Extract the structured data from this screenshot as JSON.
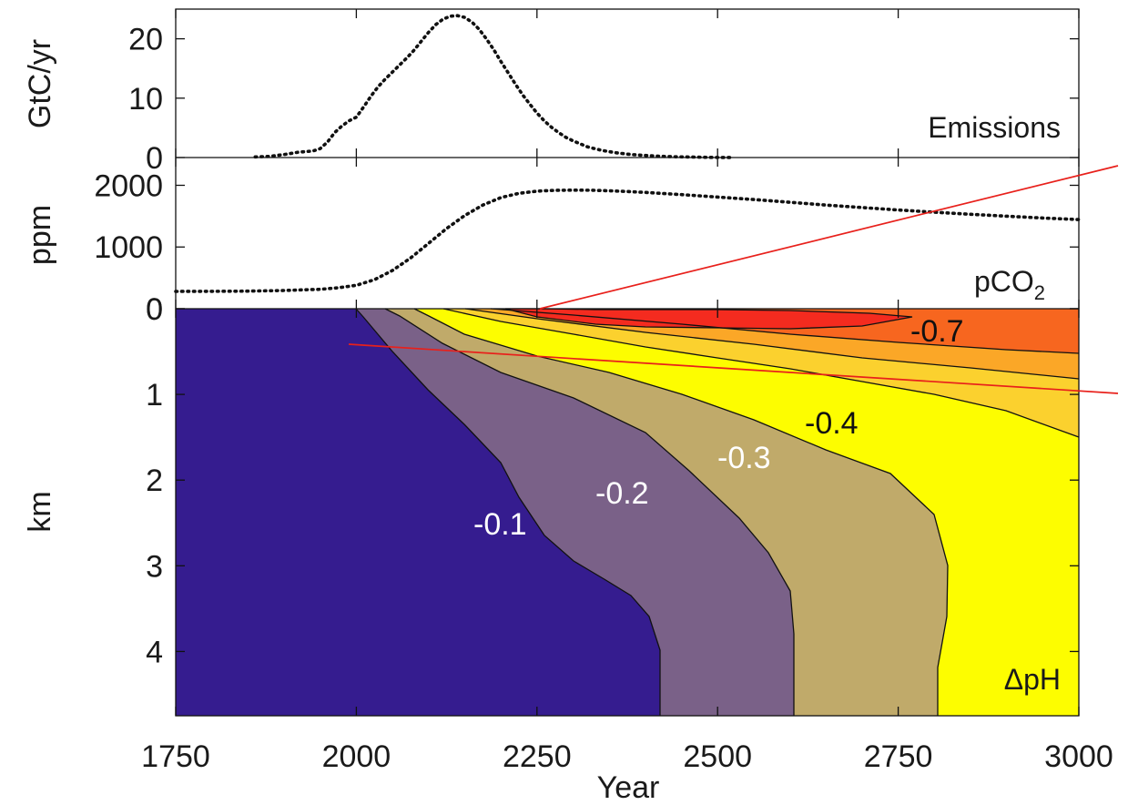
{
  "chart_data": {
    "type": "composite",
    "x_axis": {
      "label": "Year",
      "range": [
        1750,
        3000
      ],
      "ticks": [
        1750,
        2000,
        2250,
        2500,
        2750,
        3000
      ]
    },
    "panels": [
      {
        "id": "emissions",
        "type": "line",
        "label": "Emissions",
        "ylabel": "GtC/yr",
        "ylim": [
          0,
          25
        ],
        "yticks": [
          0,
          10,
          20
        ],
        "series": [
          {
            "x": [
              1860,
              1880,
              1900,
              1920,
              1940,
              1950,
              1960,
              1970,
              1980,
              1990,
              2000,
              2010,
              2020,
              2030,
              2040,
              2050,
              2060,
              2070,
              2080,
              2090,
              2100,
              2110,
              2120,
              2130,
              2140,
              2150,
              2160,
              2170,
              2180,
              2190,
              2200,
              2210,
              2220,
              2230,
              2240,
              2250,
              2260,
              2270,
              2280,
              2290,
              2300,
              2320,
              2340,
              2360,
              2380,
              2400,
              2420,
              2440,
              2460,
              2480,
              2500,
              2520
            ],
            "y": [
              0.1,
              0.2,
              0.5,
              0.9,
              1.1,
              1.5,
              2.6,
              4.2,
              5.3,
              6.2,
              6.8,
              8.5,
              10.3,
              11.9,
              13.2,
              14.4,
              15.6,
              16.8,
              18.1,
              19.6,
              21.1,
              22.4,
              23.3,
              23.8,
              23.9,
              23.6,
              22.8,
              21.6,
              20.0,
              18.2,
              16.2,
              14.3,
              12.4,
              10.6,
              9.0,
              7.5,
              6.2,
              5.1,
              4.2,
              3.4,
              2.8,
              1.8,
              1.2,
              0.8,
              0.5,
              0.35,
              0.22,
              0.14,
              0.09,
              0.05,
              0.02,
              0.0
            ]
          }
        ]
      },
      {
        "id": "pco2",
        "type": "line",
        "label": "pCO",
        "label_subscript": "2",
        "ylabel": "ppm",
        "ylim": [
          0,
          2450
        ],
        "yticks": [
          0,
          1000,
          2000
        ],
        "series": [
          {
            "x": [
              1750,
              1800,
              1850,
              1900,
              1925,
              1950,
              1975,
              2000,
              2025,
              2050,
              2075,
              2100,
              2125,
              2150,
              2175,
              2200,
              2225,
              2250,
              2275,
              2300,
              2325,
              2350,
              2375,
              2400,
              2450,
              2500,
              2550,
              2600,
              2650,
              2700,
              2750,
              2800,
              2850,
              2900,
              2950,
              3000
            ],
            "y": [
              280,
              282,
              285,
              295,
              305,
              315,
              340,
              380,
              470,
              620,
              820,
              1060,
              1300,
              1510,
              1680,
              1800,
              1870,
              1905,
              1918,
              1922,
              1920,
              1912,
              1900,
              1885,
              1850,
              1810,
              1770,
              1725,
              1680,
              1640,
              1600,
              1565,
              1530,
              1500,
              1470,
              1445
            ]
          }
        ]
      },
      {
        "id": "delta-ph",
        "type": "heatmap",
        "label": "ΔpH",
        "ylabel": "km",
        "ylim": [
          0,
          4.75
        ],
        "yticks": [
          0,
          1,
          2,
          3,
          4
        ],
        "contour_labels": [
          "-0.1",
          "-0.2",
          "-0.3",
          "-0.4",
          "-0.7"
        ],
        "bands": [
          {
            "level": "0 to -0.1",
            "color": "#351c8f"
          },
          {
            "level": "-0.1 to -0.2",
            "color": "#7a6188"
          },
          {
            "level": "-0.2 to -0.3",
            "color": "#c0aa6a"
          },
          {
            "level": "-0.3 to -0.4",
            "color": "#fdfd00"
          },
          {
            "level": "-0.4 to -0.5",
            "color": "#fbd12e"
          },
          {
            "level": "-0.5 to -0.6",
            "color": "#fba727"
          },
          {
            "level": "-0.6 to -0.7",
            "color": "#f7661f"
          },
          {
            "level": "below -0.7",
            "color": "#f42b1f"
          }
        ],
        "contours": [
          {
            "label": "-0.1",
            "x": [
              2000,
              2010,
              2050,
              2100,
              2150,
              2200,
              2225,
              2260,
              2300,
              2340,
              2380,
              2405,
              2420,
              2420
            ],
            "y": [
              0,
              0.1,
              0.5,
              0.95,
              1.35,
              1.8,
              2.2,
              2.65,
              2.95,
              3.15,
              3.35,
              3.6,
              4.0,
              4.75
            ]
          },
          {
            "label": "-0.2",
            "x": [
              2040,
              2060,
              2120,
              2200,
              2300,
              2400,
              2460,
              2530,
              2570,
              2600,
              2605,
              2605
            ],
            "y": [
              0,
              0.08,
              0.4,
              0.75,
              1.05,
              1.45,
              1.9,
              2.45,
              2.85,
              3.3,
              3.8,
              4.75
            ]
          },
          {
            "label": "-0.3",
            "x": [
              2080,
              2100,
              2150,
              2250,
              2350,
              2450,
              2550,
              2650,
              2740,
              2800,
              2820,
              2815,
              2800,
              2800
            ],
            "y": [
              0,
              0.08,
              0.3,
              0.55,
              0.75,
              1.0,
              1.3,
              1.55,
              1.9,
              2.4,
              3.0,
              3.6,
              4.2,
              4.75
            ]
          },
          {
            "label": "-0.4",
            "x": [
              2120,
              2200,
              2300,
              2400,
              2500,
              2600,
              2700,
              2800,
              2900,
              3000
            ],
            "y": [
              0,
              0.15,
              0.3,
              0.45,
              0.58,
              0.7,
              0.85,
              1.0,
              1.2,
              1.5
            ]
          },
          {
            "label": "-0.5",
            "x": [
              2150,
              2250,
              2400,
              2550,
              2700,
              2850,
              3000
            ],
            "y": [
              0,
              0.12,
              0.28,
              0.42,
              0.58,
              0.7,
              0.82
            ]
          },
          {
            "label": "-0.6",
            "x": [
              2185,
              2300,
              2450,
              2600,
              2750,
              2900,
              3000
            ],
            "y": [
              0,
              0.07,
              0.18,
              0.3,
              0.4,
              0.48,
              0.52
            ]
          },
          {
            "label": "-0.7",
            "x": [
              2205,
              2250,
              2330,
              2400,
              2500,
              2600,
              2700,
              2770,
              2705,
              2600,
              2500,
              2400,
              2330,
              2260,
              2205
            ],
            "y": [
              0,
              0.1,
              0.18,
              0.21,
              0.23,
              0.23,
              0.2,
              0.1,
              0.03,
              0.02,
              0.015,
              0.01,
              0.01,
              0.0,
              0
            ]
          }
        ]
      }
    ]
  }
}
